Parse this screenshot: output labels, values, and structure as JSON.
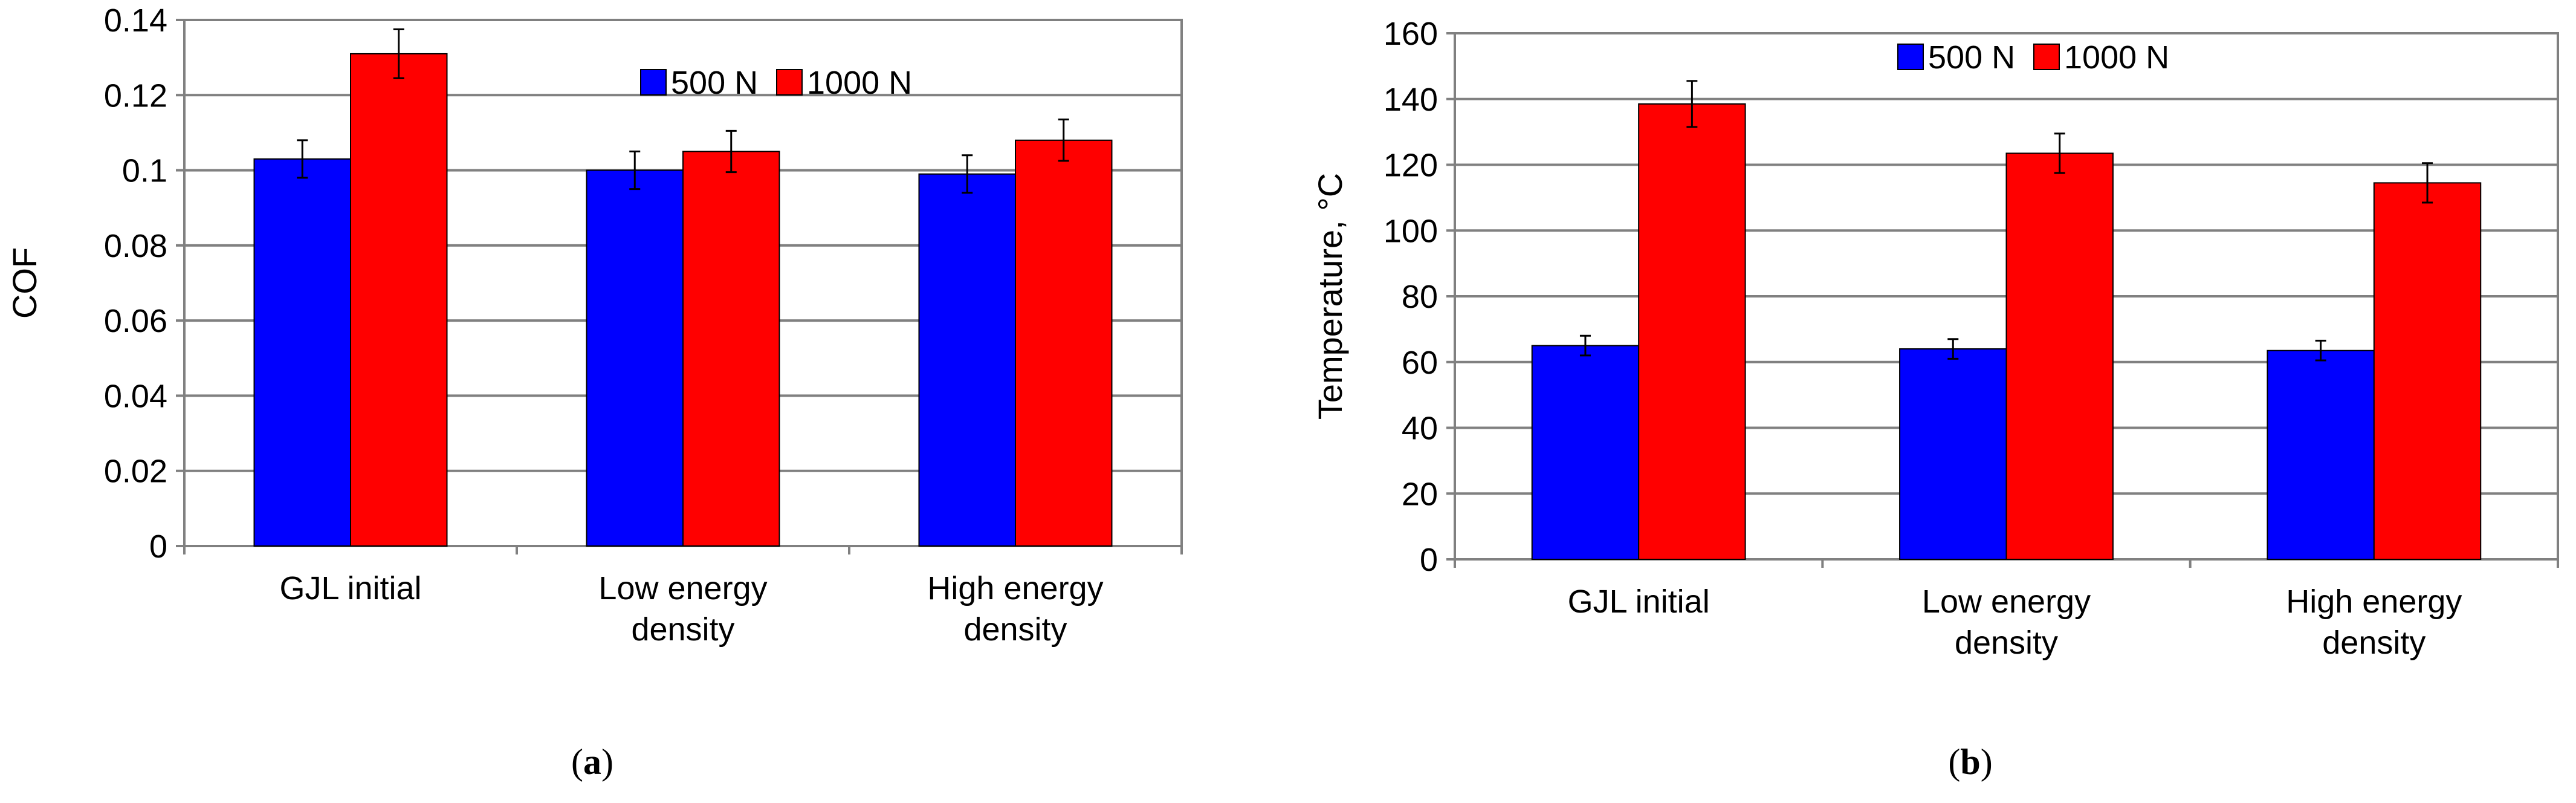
{
  "chart_data": [
    {
      "type": "bar",
      "panel_label": "a",
      "ylabel": "COF",
      "xlabel": "",
      "ylim": [
        0,
        0.14
      ],
      "yticks": [
        0,
        0.02,
        0.04,
        0.06,
        0.08,
        0.1,
        0.12,
        0.14
      ],
      "ytick_labels": [
        "0",
        "0.02",
        "0.04",
        "0.06",
        "0.08",
        "0.1",
        "0.12",
        "0.14"
      ],
      "grid": true,
      "legend_position": "top-right",
      "categories": [
        [
          "GJL initial"
        ],
        [
          "Low energy",
          "density"
        ],
        [
          "High energy",
          "density"
        ]
      ],
      "series": [
        {
          "name": "500 N",
          "color": "#0000ff",
          "values": [
            0.103,
            0.1,
            0.099
          ],
          "errors": [
            0.005,
            0.005,
            0.005
          ]
        },
        {
          "name": "1000 N",
          "color": "#ff0000",
          "values": [
            0.131,
            0.105,
            0.108
          ],
          "errors": [
            0.0065,
            0.0055,
            0.0055
          ]
        }
      ]
    },
    {
      "type": "bar",
      "panel_label": "b",
      "ylabel": "Temperature, °C",
      "xlabel": "",
      "ylim": [
        0,
        160
      ],
      "yticks": [
        0,
        20,
        40,
        60,
        80,
        100,
        120,
        140,
        160
      ],
      "ytick_labels": [
        "0",
        "20",
        "40",
        "60",
        "80",
        "100",
        "120",
        "140",
        "160"
      ],
      "grid": true,
      "legend_position": "top-center",
      "categories": [
        [
          "GJL initial"
        ],
        [
          "Low energy",
          "density"
        ],
        [
          "High energy",
          "density"
        ]
      ],
      "series": [
        {
          "name": "500 N",
          "color": "#0000ff",
          "values": [
            65,
            64,
            63.5
          ],
          "errors": [
            3,
            3,
            3
          ]
        },
        {
          "name": "1000 N",
          "color": "#ff0000",
          "values": [
            138.5,
            123.5,
            114.5
          ],
          "errors": [
            7,
            6,
            6
          ]
        }
      ]
    }
  ]
}
